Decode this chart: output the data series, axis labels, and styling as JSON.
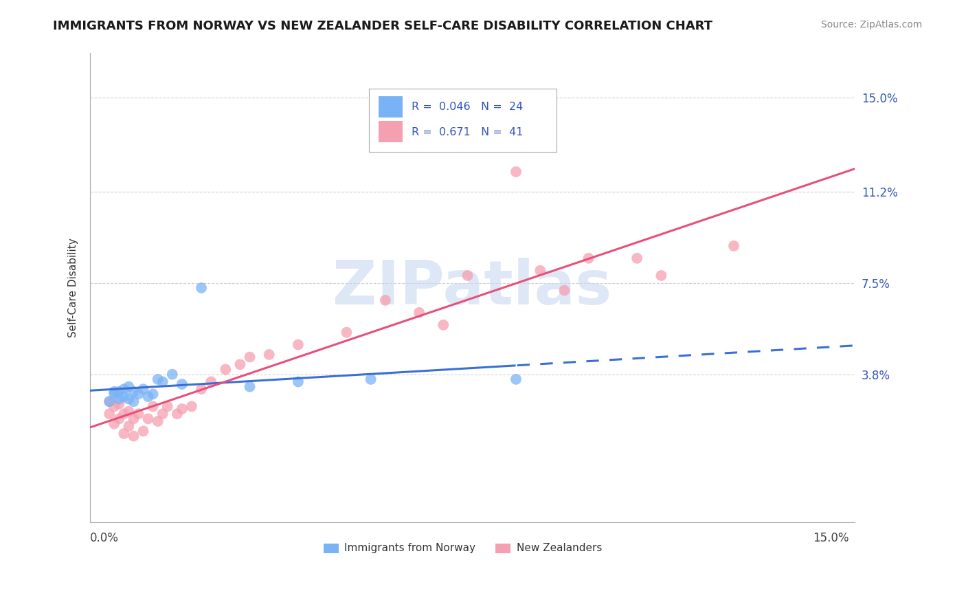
{
  "title": "IMMIGRANTS FROM NORWAY VS NEW ZEALANDER SELF-CARE DISABILITY CORRELATION CHART",
  "source": "Source: ZipAtlas.com",
  "ylabel": "Self-Care Disability",
  "xlim": [
    -0.003,
    0.155
  ],
  "ylim": [
    -0.022,
    0.168
  ],
  "color_blue": "#7ab3f5",
  "color_pink": "#f5a0b0",
  "color_blue_line": "#3a6fd8",
  "color_pink_line": "#e8507a",
  "legend_r1": "0.046",
  "legend_n1": "24",
  "legend_r2": "0.671",
  "legend_n2": "41",
  "legend_label1": "Immigrants from Norway",
  "legend_label2": "New Zealanders",
  "grid_color": "#cccccc",
  "watermark_color": "#c8d8f0",
  "right_tick_color": "#3355bb",
  "ytick_vals": [
    0.038,
    0.075,
    0.112,
    0.15
  ],
  "ytick_labels": [
    "3.8%",
    "7.5%",
    "11.2%",
    "15.0%"
  ],
  "norway_x": [
    0.001,
    0.002,
    0.002,
    0.003,
    0.003,
    0.004,
    0.004,
    0.005,
    0.005,
    0.006,
    0.006,
    0.007,
    0.008,
    0.009,
    0.01,
    0.011,
    0.012,
    0.014,
    0.016,
    0.02,
    0.03,
    0.04,
    0.055,
    0.085
  ],
  "norway_y": [
    0.027,
    0.03,
    0.031,
    0.028,
    0.031,
    0.029,
    0.032,
    0.028,
    0.033,
    0.031,
    0.027,
    0.03,
    0.032,
    0.029,
    0.03,
    0.036,
    0.035,
    0.038,
    0.034,
    0.073,
    0.033,
    0.035,
    0.036,
    0.036
  ],
  "nz_x": [
    0.001,
    0.001,
    0.002,
    0.002,
    0.003,
    0.003,
    0.004,
    0.004,
    0.005,
    0.005,
    0.006,
    0.006,
    0.007,
    0.008,
    0.009,
    0.01,
    0.011,
    0.012,
    0.013,
    0.015,
    0.016,
    0.018,
    0.02,
    0.022,
    0.025,
    0.028,
    0.03,
    0.034,
    0.04,
    0.05,
    0.058,
    0.065,
    0.075,
    0.09,
    0.1,
    0.07,
    0.085,
    0.095,
    0.11,
    0.115,
    0.13
  ],
  "nz_y": [
    0.022,
    0.027,
    0.018,
    0.025,
    0.02,
    0.026,
    0.014,
    0.022,
    0.017,
    0.023,
    0.013,
    0.02,
    0.022,
    0.015,
    0.02,
    0.025,
    0.019,
    0.022,
    0.025,
    0.022,
    0.024,
    0.025,
    0.032,
    0.035,
    0.04,
    0.042,
    0.045,
    0.046,
    0.05,
    0.055,
    0.068,
    0.063,
    0.078,
    0.08,
    0.085,
    0.058,
    0.12,
    0.072,
    0.085,
    0.078,
    0.09
  ]
}
